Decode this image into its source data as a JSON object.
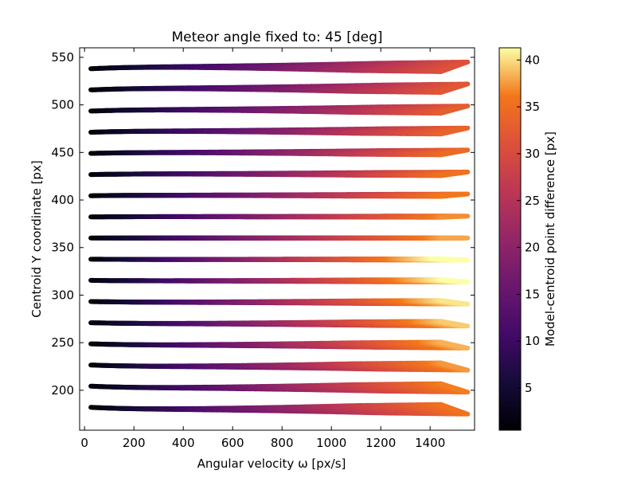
{
  "chart_data": {
    "type": "scatter",
    "title": "Meteor angle fixed to: 45 [deg]",
    "xlabel": "Angular velocity ω [px/s]",
    "ylabel": "Centroid Y coordinate [px]",
    "xlim": [
      -20,
      1580
    ],
    "ylim": [
      158,
      560
    ],
    "x_ticks": [
      0,
      200,
      400,
      600,
      800,
      1000,
      1200,
      1400
    ],
    "y_ticks": [
      200,
      250,
      300,
      350,
      400,
      450,
      500,
      550
    ],
    "grid": false,
    "colormap": "inferno",
    "colorbar": {
      "label": "Model-centroid  point difference [px]",
      "range": [
        0.5,
        41.3
      ],
      "ticks": [
        5,
        10,
        15,
        20,
        25,
        30,
        35,
        40
      ]
    },
    "segments": {
      "count": 17,
      "center_y": 360,
      "y_spacing": 22.5,
      "left_y_span": [
        182,
        538
      ],
      "omega_start": 30,
      "omega_end": 1500,
      "omega_step": 9,
      "tilt_deg": 45,
      "max_difference": 41.3
    }
  }
}
